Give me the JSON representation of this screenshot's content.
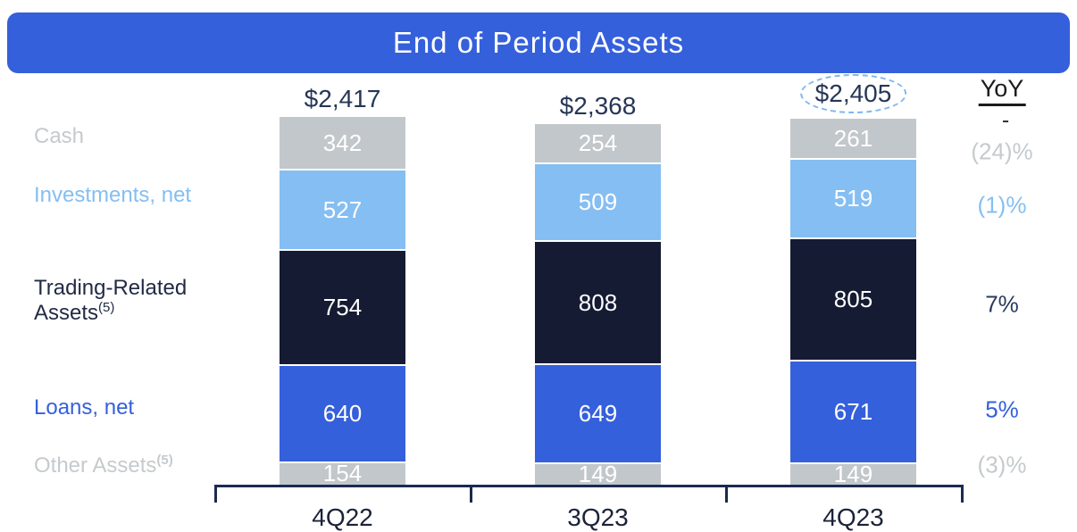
{
  "title": "End of Period Assets",
  "yoy": {
    "header": "YoY",
    "total_change": "-"
  },
  "colors": {
    "banner": "#3560DB",
    "axis": "#1B2A52",
    "total_text": "#263656",
    "category_text": "#1B2339",
    "highlight_ellipse": "#7FB8EE",
    "segment_value_text": "#FFFFFF"
  },
  "chart_data": {
    "type": "bar",
    "stacked": true,
    "title": "End of Period Assets",
    "categories": [
      "4Q22",
      "3Q23",
      "4Q23"
    ],
    "totals_labels": [
      "$2,417",
      "$2,368",
      "$2,405"
    ],
    "highlight_total_index": 2,
    "yoy_header": "YoY",
    "yoy_total": "-",
    "legend_position": "left-labels",
    "value_labels": "inside-segments-white",
    "series": [
      {
        "name": "Cash",
        "footnote": "",
        "footnote_bold": false,
        "values": [
          342,
          254,
          261
        ],
        "yoy": "(24)%",
        "color": "#C2C7CB",
        "label_color": "#C6CACD",
        "yoy_color": "#C6CACD"
      },
      {
        "name": "Investments, net",
        "footnote": "",
        "footnote_bold": false,
        "values": [
          527,
          509,
          519
        ],
        "yoy": "(1)%",
        "color": "#85BEF2",
        "label_color": "#85BEF2",
        "yoy_color": "#85BEF2"
      },
      {
        "name": "Trading-Related Assets",
        "footnote": "(5)",
        "footnote_bold": false,
        "values": [
          754,
          808,
          805
        ],
        "yoy": "7%",
        "color": "#151B33",
        "label_color": "#222B45",
        "yoy_color": "#2A3A5E"
      },
      {
        "name": "Loans, net",
        "footnote": "",
        "footnote_bold": false,
        "values": [
          640,
          649,
          671
        ],
        "yoy": "5%",
        "color": "#3560DB",
        "label_color": "#3560DB",
        "yoy_color": "#3560DB"
      },
      {
        "name": "Other Assets",
        "footnote": "(5)",
        "footnote_bold": true,
        "values": [
          154,
          149,
          149
        ],
        "yoy": "(3)%",
        "color": "#C2C7CB",
        "label_color": "#C6CACD",
        "yoy_color": "#C6CACD"
      }
    ]
  }
}
